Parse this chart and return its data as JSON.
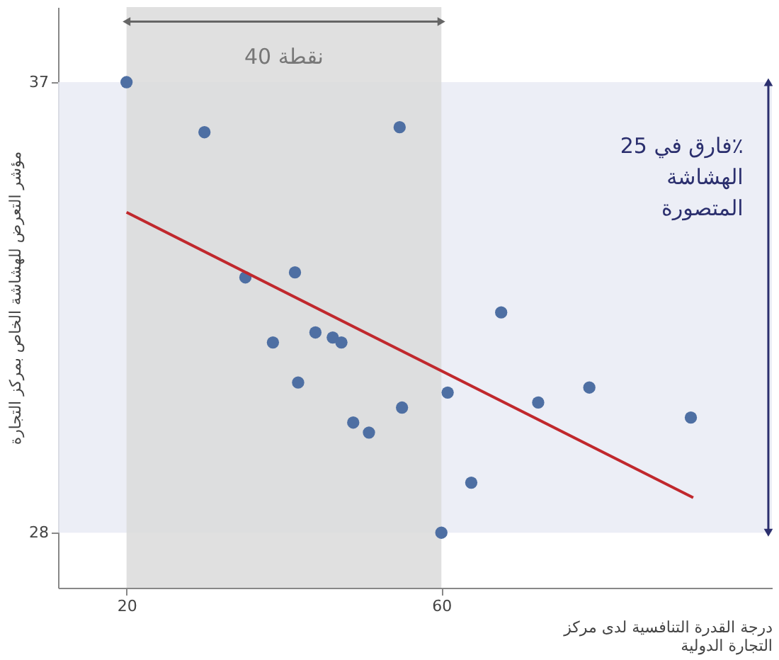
{
  "chart_data": {
    "type": "scatter",
    "xlabel": "درجة القدرة التنافسية لدى مركز\nالتجارة الدولية",
    "ylabel": "مؤشر التعرض للهشاشة الخاص بمركز التجارة",
    "xlim": [
      11.3,
      102
    ],
    "ylim": [
      26.9,
      38.5
    ],
    "xticks": [
      20,
      60
    ],
    "yticks": [
      28,
      37
    ],
    "grid": false,
    "marker": "circle",
    "series": [
      {
        "color": "#4e6fa3",
        "x": [
          20,
          29.9,
          54.7,
          35.1,
          41.4,
          38.6,
          44.0,
          46.2,
          47.3,
          41.8,
          48.8,
          50.8,
          55.0,
          60.8,
          67.6,
          72.3,
          78.8,
          91.7,
          63.8,
          60
        ],
        "values": [
          37.0,
          36.0,
          36.1,
          33.1,
          33.2,
          31.8,
          32.0,
          31.9,
          31.8,
          31.0,
          30.2,
          30.0,
          30.5,
          30.8,
          32.4,
          30.6,
          30.9,
          30.3,
          29.0,
          28.0
        ]
      },
      {
        "type": "line",
        "color": "#c0282d",
        "line_style": "solid",
        "marker": "none",
        "x": [
          20,
          92
        ],
        "values": [
          34.4,
          28.7
        ]
      }
    ],
    "bands": [
      {
        "axis": "x",
        "from": 20,
        "to": 60,
        "label": "40 نقطة",
        "color": "#dadada"
      },
      {
        "axis": "y",
        "from": 28,
        "to": 37,
        "label": "فارق في 25٪\nالهشاشة\nالمتصورة",
        "color": "#e9ebf4"
      }
    ]
  }
}
